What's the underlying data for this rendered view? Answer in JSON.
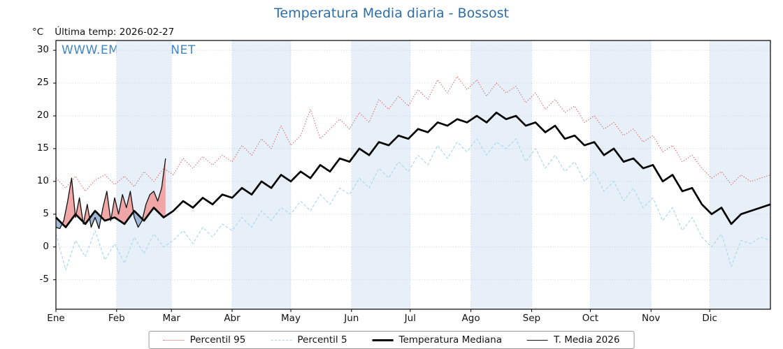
{
  "title": "Temperatura Media diaria - Bossost",
  "watermark": "WWW.EMBALSES.NET",
  "y_unit": "°C",
  "last_temp_label": "Última temp: 2026-02-27",
  "legend": {
    "p95": "Percentil 95",
    "p5": "Percentil 5",
    "median": "Temperatura Mediana",
    "t2026": "T. Media 2026"
  },
  "colors": {
    "title": "#2d6da8",
    "watermark": "#4186c6",
    "p95": "#e15151",
    "p5": "#a8d6e8",
    "median": "#000000",
    "t2026": "#111111",
    "fill_above": "#f19999",
    "fill_below": "#8fafd0",
    "month_band": "#e7f0f8",
    "grid": "#bccada"
  },
  "chart_data": {
    "type": "line",
    "title": "Temperatura Media diaria - Bossost",
    "xlabel": "",
    "ylabel": "°C",
    "categories": [
      "Ene",
      "Feb",
      "Mar",
      "Abr",
      "May",
      "Jun",
      "Jul",
      "Ago",
      "Sep",
      "Oct",
      "Nov",
      "Dic"
    ],
    "month_start_days": [
      0,
      31,
      59,
      90,
      120,
      151,
      181,
      212,
      243,
      273,
      304,
      334
    ],
    "xlim_days": [
      0,
      365
    ],
    "ylim": [
      -9.5,
      31.5
    ],
    "yticks": [
      -5,
      0,
      5,
      10,
      15,
      20,
      25,
      30
    ],
    "grid": true,
    "legend_position": "bottom",
    "shaded_months": [
      1,
      3,
      5,
      7,
      9,
      11
    ],
    "series": [
      {
        "name": "Percentil 95",
        "step": 5,
        "values": [
          10.5,
          9.0,
          10.8,
          8.5,
          10.2,
          11.0,
          9.5,
          10.8,
          9.2,
          11.5,
          10.0,
          12.0,
          11.0,
          13.5,
          12.0,
          13.8,
          12.5,
          14.0,
          13.0,
          15.5,
          14.0,
          16.5,
          15.0,
          18.5,
          15.5,
          17.0,
          21.0,
          16.5,
          18.0,
          19.5,
          18.0,
          20.5,
          19.0,
          22.5,
          21.0,
          23.0,
          21.5,
          24.0,
          22.5,
          25.5,
          23.5,
          26.0,
          24.0,
          25.5,
          23.0,
          25.0,
          23.5,
          24.5,
          22.0,
          23.5,
          21.0,
          22.5,
          20.5,
          21.5,
          19.0,
          20.0,
          18.0,
          19.0,
          17.0,
          18.0,
          16.0,
          17.0,
          14.5,
          15.5,
          13.0,
          14.0,
          12.0,
          10.5,
          11.5,
          9.5,
          11.0,
          10.0,
          10.5,
          11.0
        ]
      },
      {
        "name": "Percentil 5",
        "step": 5,
        "values": [
          2.0,
          -3.5,
          1.0,
          -1.5,
          2.5,
          -2.0,
          0.5,
          -2.5,
          1.5,
          -1.0,
          2.0,
          0.0,
          1.0,
          2.5,
          0.5,
          3.0,
          1.5,
          3.5,
          2.5,
          4.5,
          3.0,
          5.5,
          4.0,
          6.0,
          5.0,
          7.0,
          5.5,
          8.0,
          6.5,
          9.0,
          8.0,
          10.5,
          9.0,
          12.0,
          10.5,
          13.0,
          11.5,
          14.0,
          12.5,
          15.5,
          13.5,
          16.0,
          14.5,
          16.5,
          14.0,
          16.0,
          15.0,
          16.5,
          13.0,
          15.0,
          12.0,
          14.0,
          11.5,
          13.0,
          10.0,
          11.5,
          8.5,
          10.0,
          7.0,
          9.0,
          6.0,
          7.5,
          4.0,
          6.0,
          2.5,
          4.5,
          1.5,
          0.0,
          2.0,
          -3.0,
          1.0,
          0.5,
          1.5,
          1.0
        ]
      },
      {
        "name": "Temperatura Mediana",
        "step": 5,
        "values": [
          4.5,
          3.0,
          5.0,
          3.5,
          5.5,
          4.0,
          4.5,
          3.5,
          5.5,
          4.0,
          6.0,
          4.5,
          5.5,
          7.0,
          6.0,
          7.5,
          6.5,
          8.0,
          7.5,
          9.0,
          8.0,
          10.0,
          9.0,
          11.0,
          10.0,
          11.5,
          10.5,
          12.5,
          11.5,
          13.5,
          13.0,
          15.0,
          14.0,
          16.0,
          15.5,
          17.0,
          16.5,
          18.0,
          17.5,
          19.0,
          18.5,
          19.5,
          19.0,
          20.0,
          19.0,
          20.5,
          19.5,
          20.0,
          18.5,
          19.0,
          17.5,
          18.5,
          16.5,
          17.0,
          15.5,
          16.0,
          14.0,
          15.0,
          13.0,
          13.5,
          12.0,
          12.5,
          10.0,
          11.0,
          8.5,
          9.0,
          6.5,
          5.0,
          6.0,
          3.5,
          5.0,
          5.5,
          6.0,
          6.5
        ]
      },
      {
        "name": "T. Media 2026",
        "step": 2,
        "values": [
          3.0,
          2.8,
          4.0,
          7.0,
          10.5,
          4.5,
          7.5,
          3.5,
          6.5,
          3.0,
          4.5,
          2.8,
          6.0,
          8.5,
          4.0,
          7.5,
          5.0,
          8.0,
          6.0,
          8.5,
          4.5,
          3.0,
          4.0,
          6.5,
          8.0,
          8.5,
          7.0,
          9.0,
          13.5
        ]
      }
    ]
  }
}
